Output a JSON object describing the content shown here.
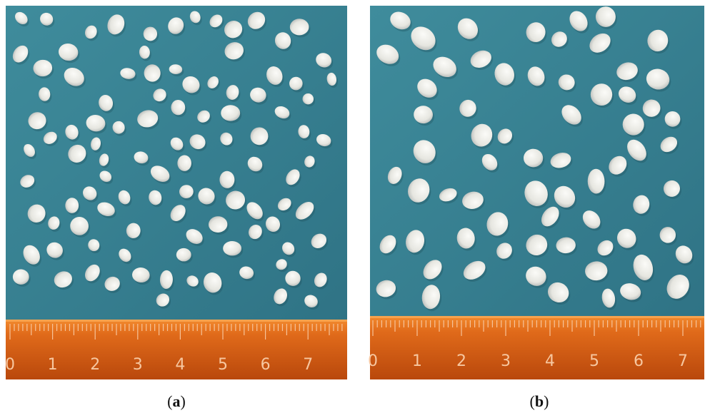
{
  "panels": [
    {
      "caption": [
        "(",
        "a",
        ")"
      ],
      "ruler_labels": [
        "0",
        "1",
        "2",
        "3",
        "4",
        "5",
        "6",
        "7"
      ]
    },
    {
      "caption": [
        "(",
        "b",
        ")"
      ],
      "ruler_labels": [
        "0",
        "1",
        "2",
        "3",
        "4",
        "5",
        "6",
        "7"
      ]
    }
  ]
}
